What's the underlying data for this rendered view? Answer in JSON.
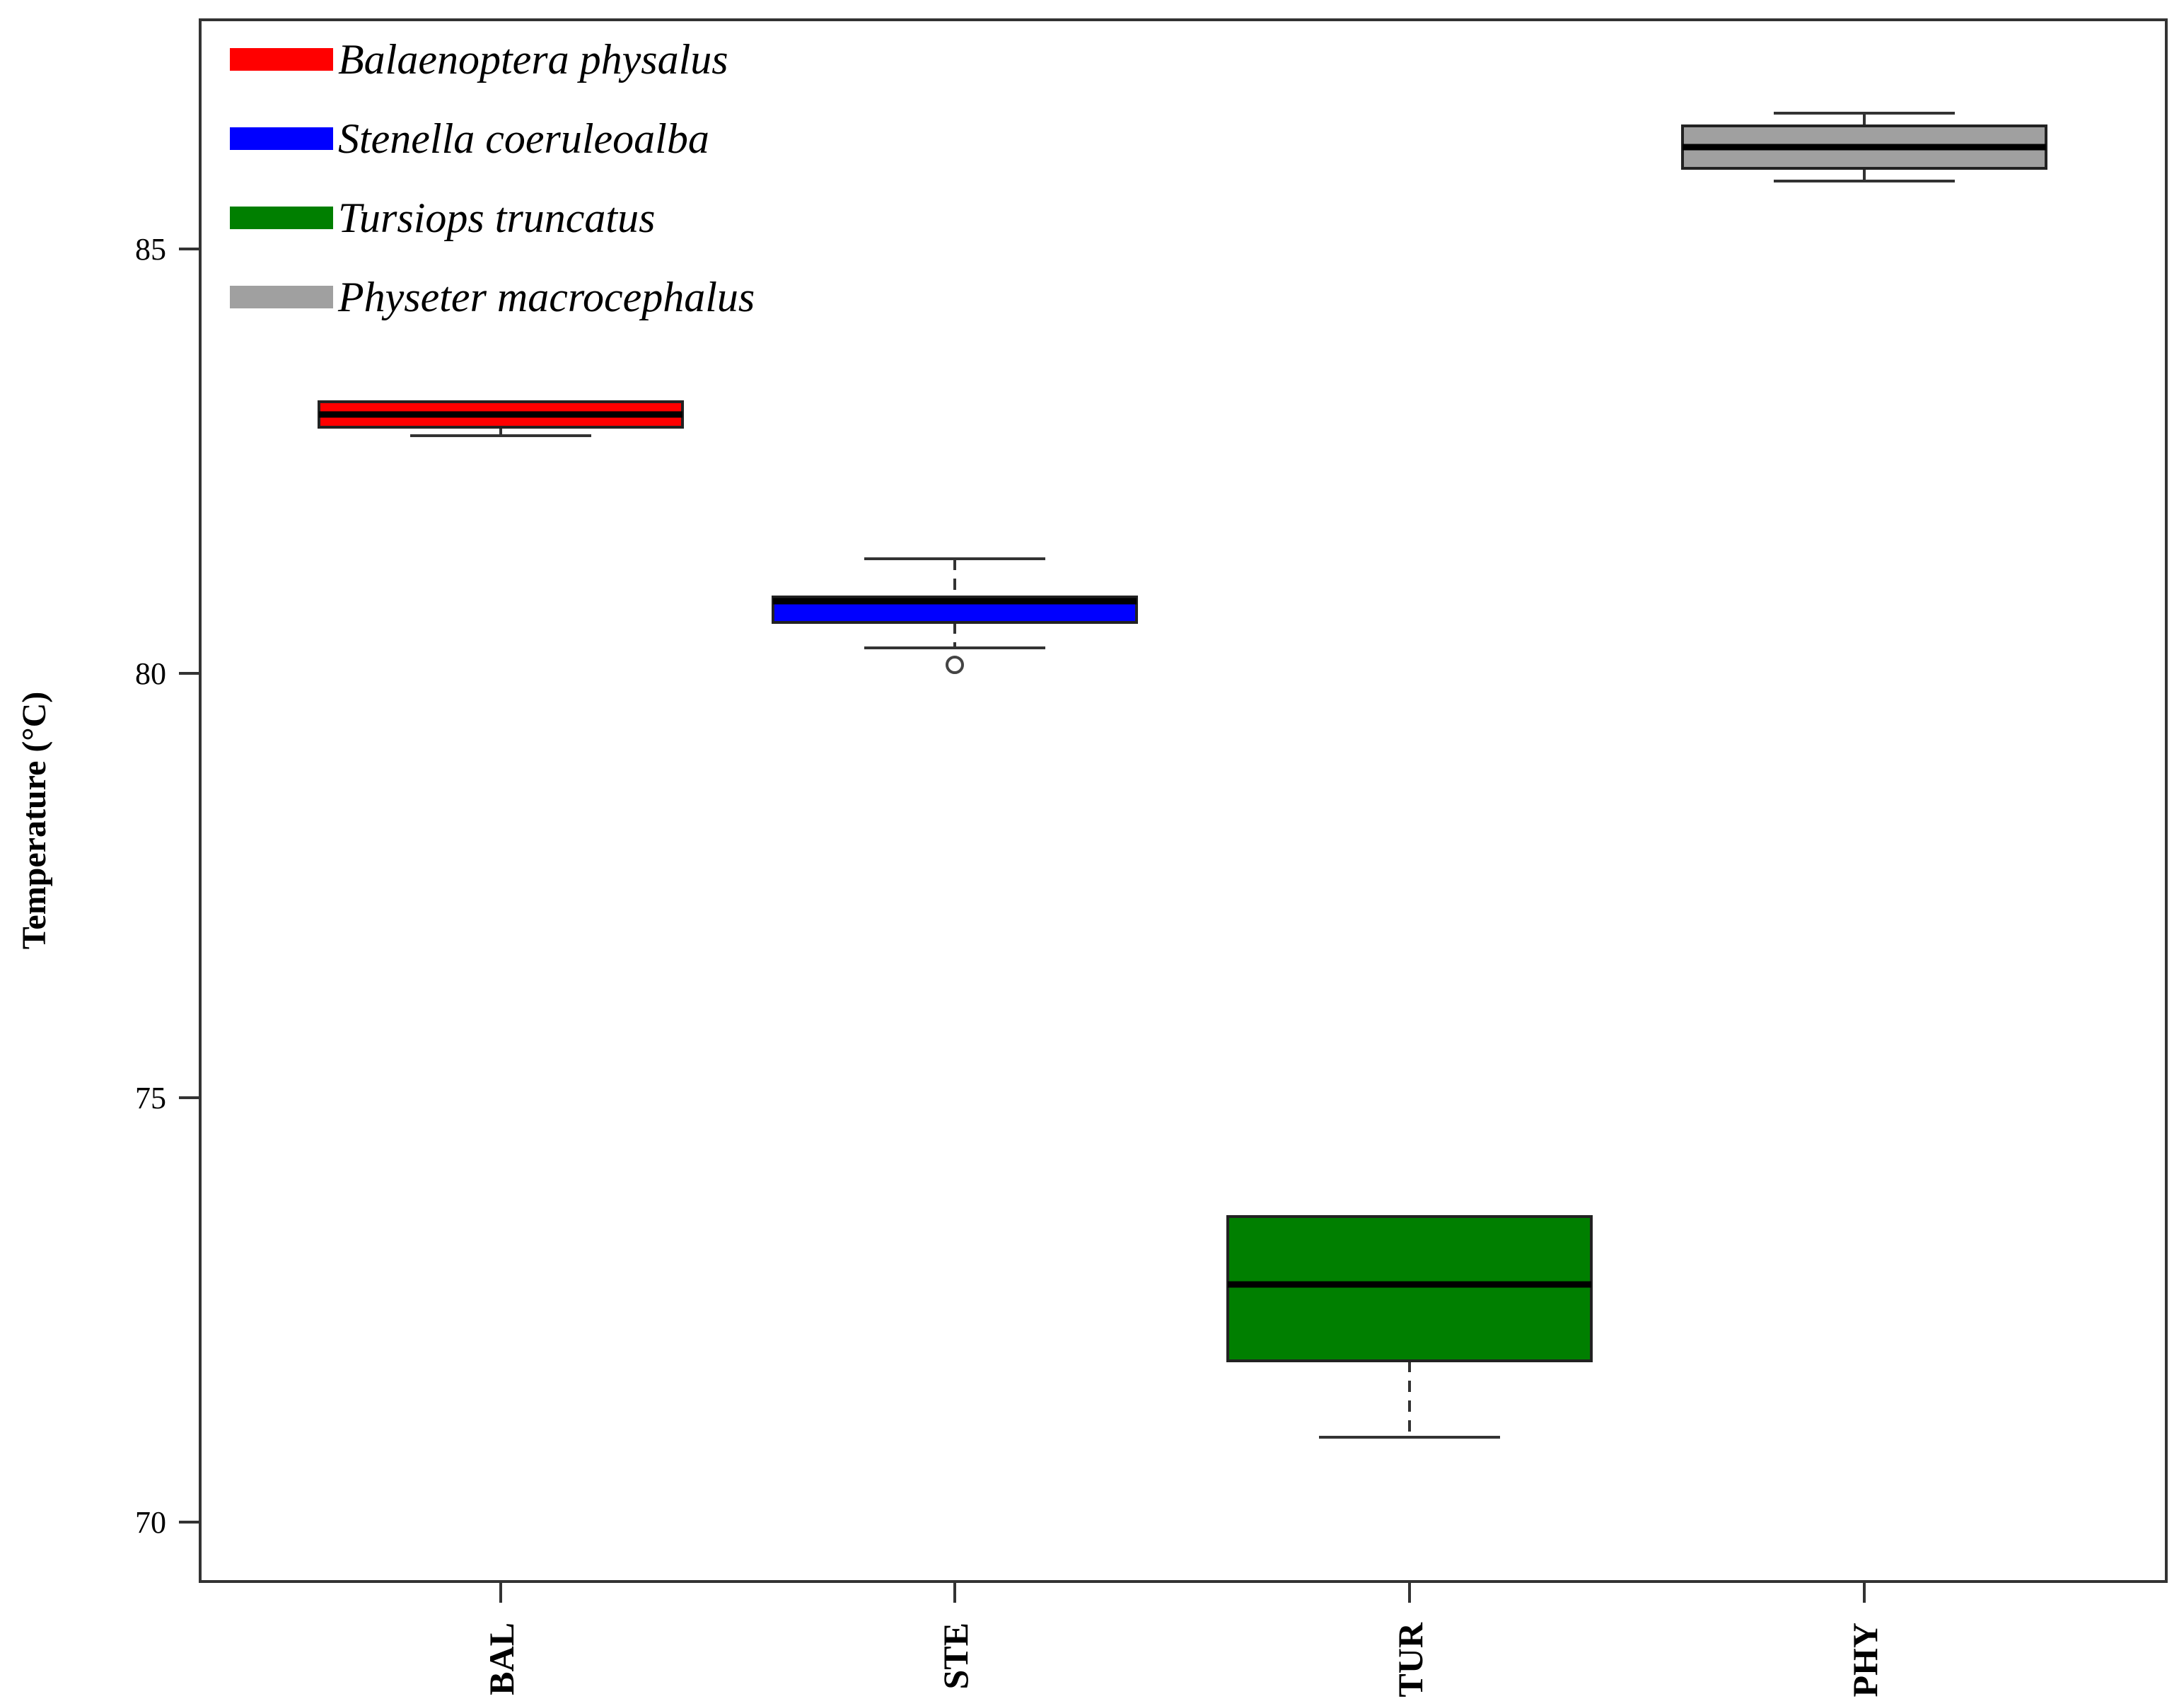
{
  "chart_data": {
    "type": "box",
    "ylabel": "Temperature (°C)",
    "xlabel": "",
    "ylim": [
      69.3,
      87.7
    ],
    "yticks": [
      70,
      75,
      80,
      85
    ],
    "grid": false,
    "legend_position": "top-left",
    "categories": [
      "BAL",
      "STE",
      "TUR",
      "PHY"
    ],
    "boxes": [
      {
        "category": "BAL",
        "min": 82.8,
        "q1": 82.9,
        "median": 83.05,
        "q3": 83.2,
        "max": 83.2,
        "outliers": [],
        "color": "#ff0000"
      },
      {
        "category": "STE",
        "min": 80.3,
        "q1": 80.6,
        "median": 80.85,
        "q3": 80.9,
        "max": 81.35,
        "outliers": [
          80.1
        ],
        "color": "#0000ff"
      },
      {
        "category": "TUR",
        "min": 71.0,
        "q1": 71.9,
        "median": 72.8,
        "q3": 73.6,
        "max": 73.6,
        "outliers": [],
        "color": "#007f00"
      },
      {
        "category": "PHY",
        "min": 85.8,
        "q1": 85.95,
        "median": 86.2,
        "q3": 86.45,
        "max": 86.6,
        "outliers": [],
        "color": "#a0a0a0"
      }
    ],
    "legend": [
      {
        "label": "Balaenoptera physalus",
        "color": "#ff0000"
      },
      {
        "label": "Stenella coeruleoalba",
        "color": "#0000ff"
      },
      {
        "label": "Tursiops truncatus",
        "color": "#007f00"
      },
      {
        "label": "Physeter macrocephalus",
        "color": "#a0a0a0"
      }
    ]
  }
}
